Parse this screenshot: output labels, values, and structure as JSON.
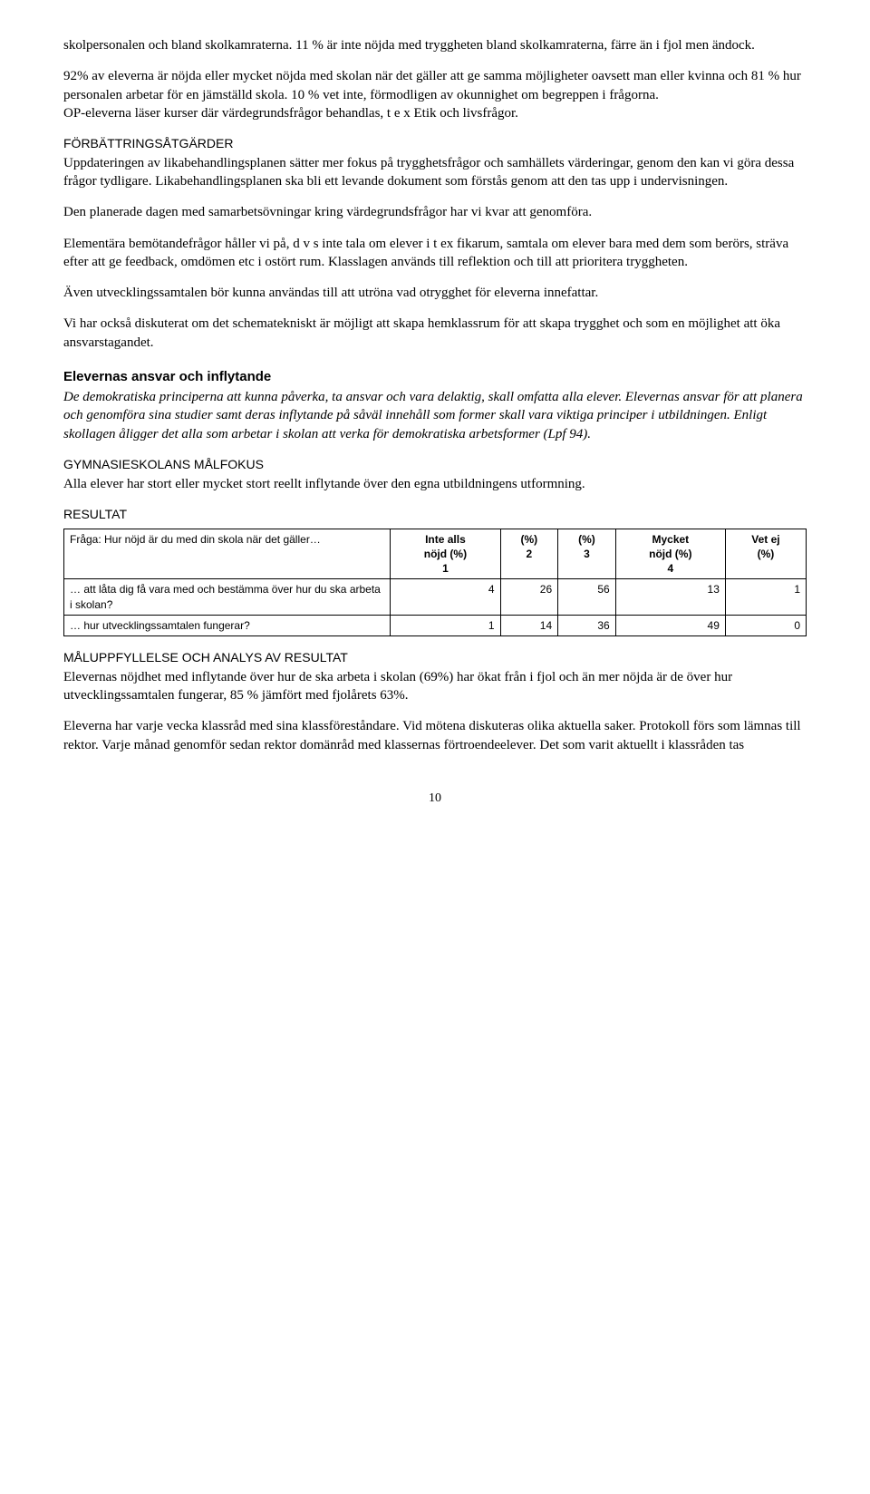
{
  "p1": "skolpersonalen och bland skolkamraterna. 11 % är inte nöjda med tryggheten bland skolkamraterna, färre än i fjol men ändock.",
  "p2": "92% av eleverna är nöjda eller mycket nöjda med skolan när det gäller att ge samma möjligheter oavsett man eller kvinna och 81 % hur personalen arbetar för en jämställd skola. 10 % vet inte, förmodligen av okunnighet om begreppen i frågorna.",
  "p3": "OP-eleverna läser kurser där värdegrundsfrågor behandlas, t e x Etik och livsfrågor.",
  "improve_head": "FÖRBÄTTRINGSÅTGÄRDER",
  "p4": "Uppdateringen av likabehandlingsplanen sätter mer fokus på trygghetsfrågor och samhällets värderingar, genom den kan vi göra dessa frågor tydligare. Likabehandlingsplanen ska bli ett levande dokument som förstås genom att den tas upp i undervisningen.",
  "p5": "Den planerade dagen med samarbetsövningar kring värdegrundsfrågor har vi kvar att genomföra.",
  "p6": "Elementära bemötandefrågor håller vi på, d v s inte tala om elever i t ex fikarum, samtala om elever bara med dem som berörs, sträva efter att ge feedback, omdömen etc i ostört rum. Klasslagen används till reflektion och till att prioritera tryggheten.",
  "p7": "Även utvecklingssamtalen bör kunna användas till att utröna vad otrygghet för eleverna innefattar.",
  "p8": "Vi har också diskuterat om det schematekniskt är möjligt att skapa hemklassrum för att skapa trygghet och som en möjlighet att öka ansvarstagandet.",
  "sec2_title": "Elevernas ansvar och inflytande",
  "sec2_intro": "De demokratiska principerna att kunna påverka, ta ansvar och vara delaktig, skall omfatta alla elever. Elevernas ansvar för att planera och genomföra sina studier samt deras inflytande på såväl innehåll som former skall vara viktiga principer i utbildningen. Enligt skollagen åligger det alla som arbetar i skolan att verka för demokratiska arbetsformer (Lpf 94).",
  "goal_head": "GYMNASIESKOLANS MÅLFOKUS",
  "goal_text": "Alla elever har stort eller mycket stort reellt inflytande över den egna utbildningens utformning.",
  "result_head": "RESULTAT",
  "table": {
    "q_label": "Fråga: Hur nöjd är du med din skola när det gäller…",
    "cols": [
      {
        "top": "Inte alls",
        "mid": "nöjd (%)",
        "bot": "1"
      },
      {
        "top": "(%)",
        "mid": "",
        "bot": "2"
      },
      {
        "top": "(%)",
        "mid": "",
        "bot": "3"
      },
      {
        "top": "Mycket",
        "mid": "nöjd (%)",
        "bot": "4"
      },
      {
        "top": "Vet ej",
        "mid": "(%)",
        "bot": ""
      }
    ],
    "rows": [
      {
        "q": "… att låta dig få vara med och bestämma över hur du ska arbeta i skolan?",
        "v": [
          "4",
          "26",
          "56",
          "13",
          "1"
        ]
      },
      {
        "q": "… hur utvecklingssamtalen fungerar?",
        "v": [
          "1",
          "14",
          "36",
          "49",
          "0"
        ]
      }
    ]
  },
  "analysis_head": "MÅLUPPFYLLELSE OCH ANALYS AV RESULTAT",
  "p9": "Elevernas nöjdhet med inflytande över hur de ska arbeta i skolan (69%)  har ökat från i fjol och än mer nöjda är de över hur utvecklingssamtalen fungerar, 85 % jämfört med fjolårets 63%.",
  "p10": "Eleverna har varje vecka klassråd med sina klassföreståndare. Vid mötena diskuteras olika aktuella saker. Protokoll förs som lämnas till rektor. Varje månad genomför sedan rektor domänråd med klassernas förtroendeelever. Det som varit aktuellt i klassråden tas",
  "page_num": "10"
}
